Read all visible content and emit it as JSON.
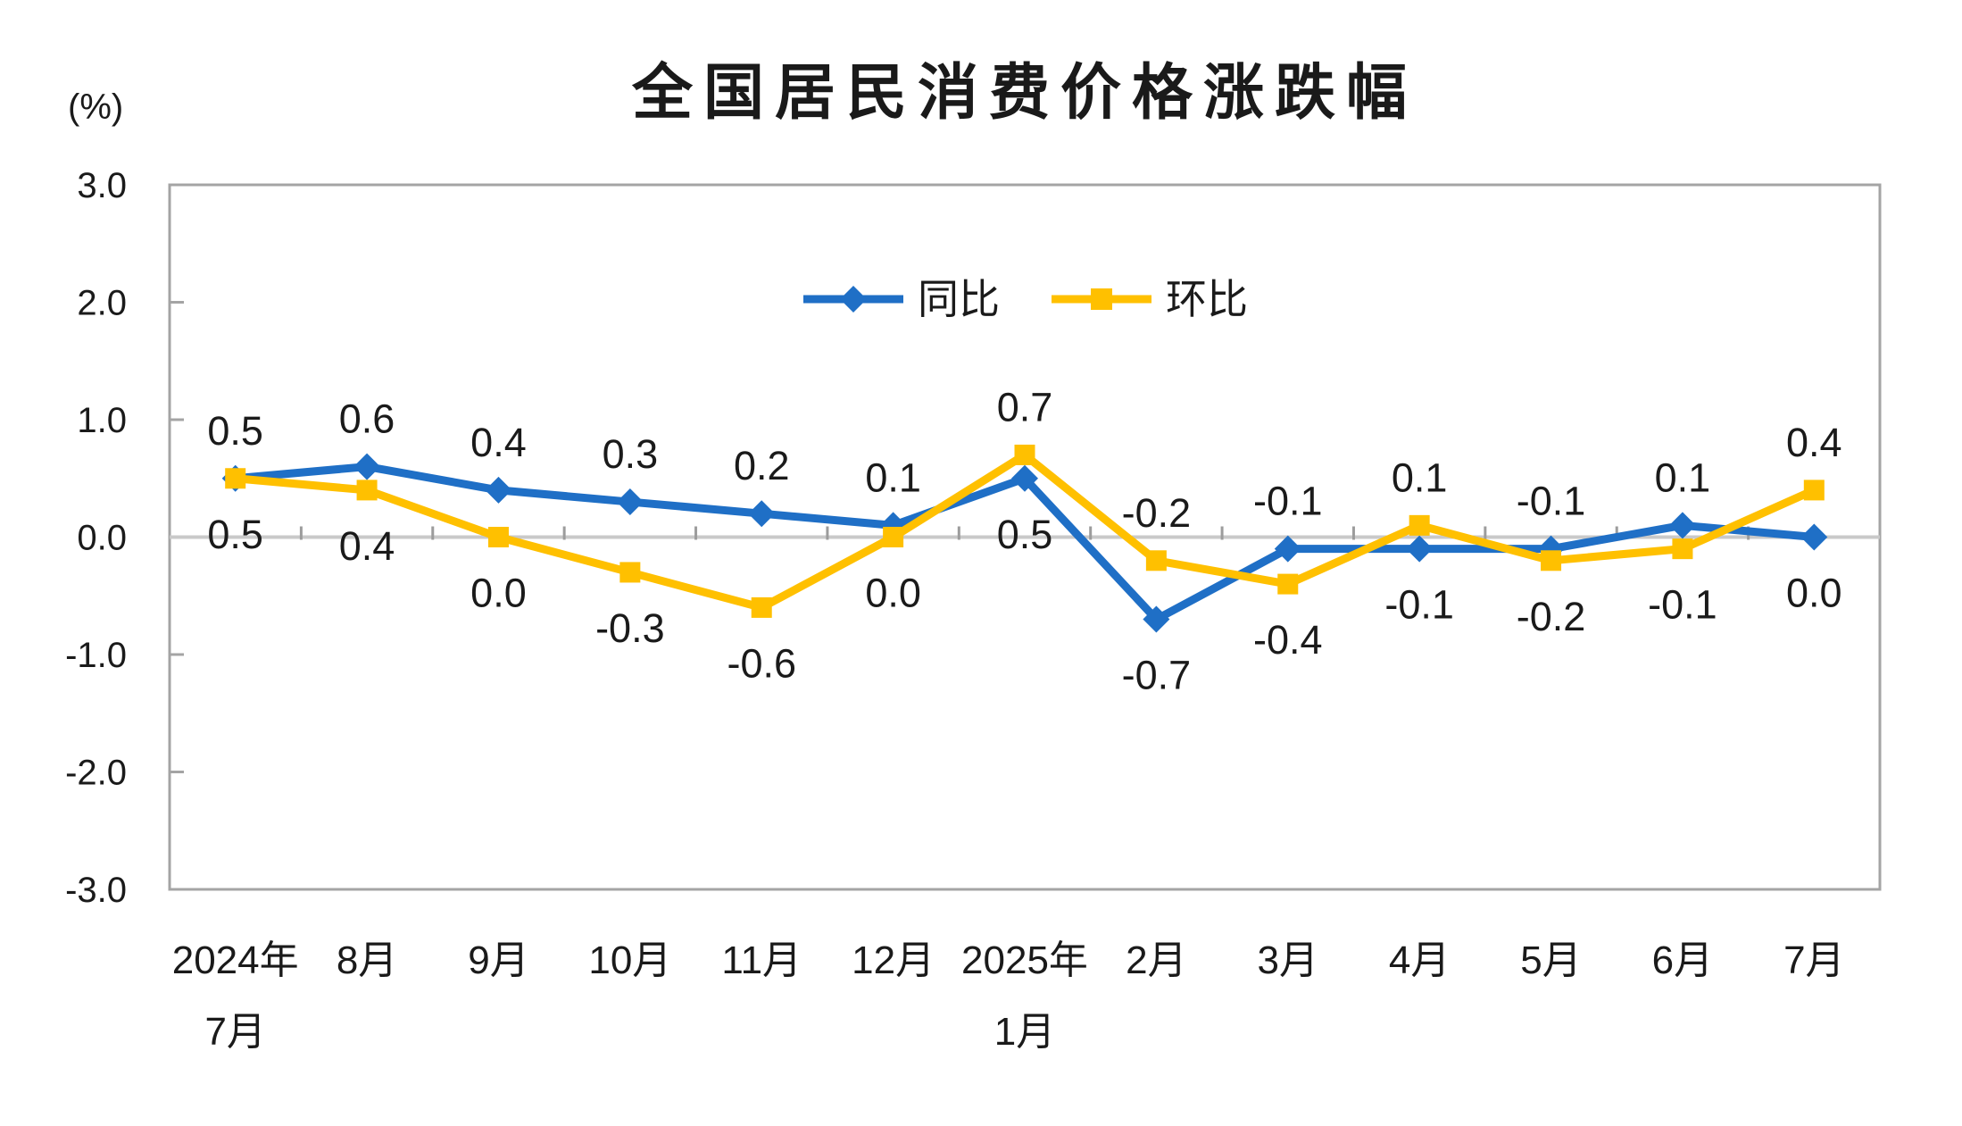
{
  "chart_data": {
    "type": "line",
    "title": "全国居民消费价格涨跌幅",
    "unit": "(%)",
    "xlabel": "",
    "ylabel": "(%)",
    "categories": [
      "2024年\n7月",
      "8月",
      "9月",
      "10月",
      "11月",
      "12月",
      "2025年\n1月",
      "2月",
      "3月",
      "4月",
      "5月",
      "6月",
      "7月"
    ],
    "series": [
      {
        "name": "同比",
        "marker": "diamond",
        "color": "#1f6fc6",
        "values": [
          0.5,
          0.6,
          0.4,
          0.3,
          0.2,
          0.1,
          0.5,
          -0.7,
          -0.1,
          -0.1,
          -0.1,
          0.1,
          0.0
        ]
      },
      {
        "name": "环比",
        "marker": "square",
        "color": "#ffc000",
        "values": [
          0.5,
          0.4,
          0.0,
          -0.3,
          -0.6,
          0.0,
          0.7,
          -0.2,
          -0.4,
          0.1,
          -0.2,
          -0.1,
          0.4
        ]
      }
    ],
    "ylim": [
      -3.0,
      3.0
    ],
    "y_ticks": [
      "3.0",
      "2.0",
      "1.0",
      "0.0",
      "-1.0",
      "-2.0",
      "-3.0"
    ],
    "grid": false,
    "data_labels": true,
    "legend_position": "top-center-inside"
  },
  "colors": {
    "frame_gray": "#a4a4a4",
    "zero_line_gray": "#c9c9c9",
    "tick_gray": "#9c9c9c",
    "label_text": "#1a1a1a",
    "yoy_blue": "#1f6fc6",
    "mom_yellow": "#ffc000"
  }
}
